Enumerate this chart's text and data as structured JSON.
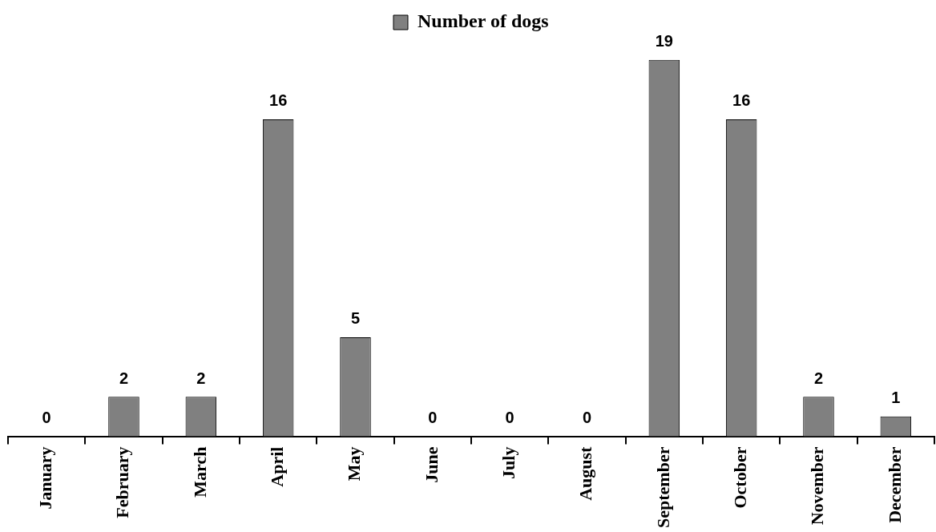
{
  "chart_data": {
    "type": "bar",
    "categories": [
      "January",
      "February",
      "March",
      "April",
      "May",
      "June",
      "July",
      "August",
      "September",
      "October",
      "November",
      "December"
    ],
    "series": [
      {
        "name": "Number of dogs",
        "color": "#808080",
        "values": [
          0,
          2,
          2,
          16,
          5,
          0,
          0,
          0,
          19,
          16,
          2,
          1
        ]
      }
    ],
    "data_labels": true,
    "legend": "top"
  }
}
